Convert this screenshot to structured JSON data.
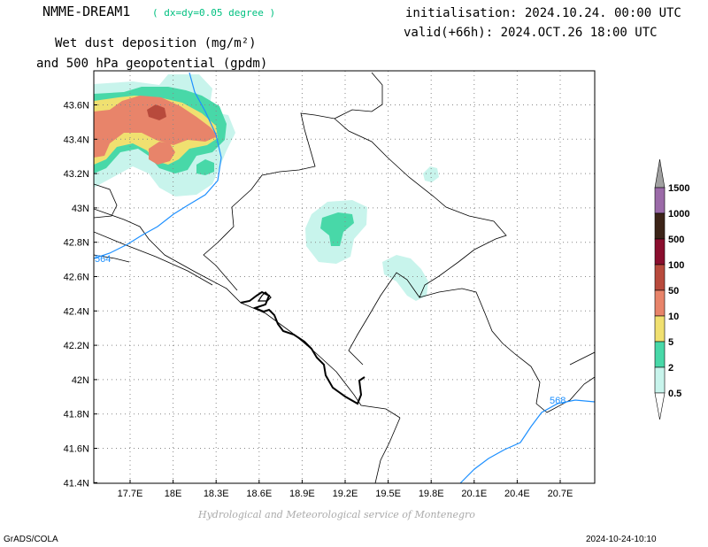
{
  "header": {
    "model": "NMME-DREAM1",
    "resolution": "( dx=dy=0.05 degree )",
    "field_line1": "Wet dust deposition (mg/m²)",
    "field_line2": "and 500 hPa geopotential (gpdm)",
    "initialisation": "initialisation: 2024.10.24. 00:00 UTC",
    "valid": "valid(+66h): 2024.OCT.26 18:00 UTC"
  },
  "footer": {
    "credit": "Hydrological and Meteorological service of Montenegro",
    "software": "GrADS/COLA",
    "timestamp": "2024-10-24-10:10"
  },
  "map": {
    "lon_range": [
      17.5,
      20.9
    ],
    "lat_range": [
      41.4,
      43.75
    ],
    "x_ticks": [
      "17.7E",
      "18E",
      "18.3E",
      "18.6E",
      "18.9E",
      "19.2E",
      "19.5E",
      "19.8E",
      "20.1E",
      "20.4E",
      "20.7E"
    ],
    "y_ticks": [
      "43.6N",
      "43.4N",
      "43.2N",
      "43N",
      "42.8N",
      "42.6N",
      "42.4N",
      "42.2N",
      "42N",
      "41.8N",
      "41.6N",
      "41.4N"
    ],
    "contour_labels": [
      "564",
      "568"
    ],
    "contour_color": "#1e90ff",
    "border_color": "#000000"
  },
  "legend": {
    "levels": [
      "1500",
      "1000",
      "500",
      "100",
      "50",
      "10",
      "5",
      "2",
      "0.5"
    ],
    "colors": [
      "#9b6aa8",
      "#3c2418",
      "#8a0e2e",
      "#b84a3c",
      "#e8846a",
      "#f0e070",
      "#48d8a8",
      "#c8f4ec"
    ],
    "top_color": "#a0a0a0"
  }
}
